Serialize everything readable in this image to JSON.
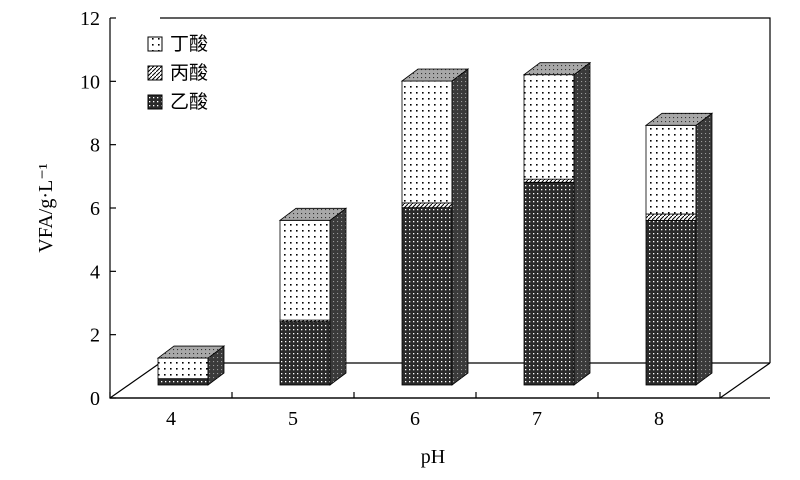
{
  "chart_data": {
    "type": "bar",
    "stacked": true,
    "style": "3d-stacked-bar",
    "categories": [
      "4",
      "5",
      "6",
      "7",
      "8"
    ],
    "series": [
      {
        "name": "乙酸",
        "pattern": "dense-crosshatch",
        "values": [
          0.2,
          2.0,
          5.6,
          6.4,
          5.2
        ]
      },
      {
        "name": "丙酸",
        "pattern": "diagonal-hatch",
        "values": [
          0.0,
          0.05,
          0.15,
          0.1,
          0.2
        ]
      },
      {
        "name": "丁酸",
        "pattern": "sparse-dots",
        "values": [
          0.65,
          3.15,
          3.85,
          3.3,
          2.8
        ]
      }
    ],
    "xlabel": "pH",
    "ylabel": "VFA/g·L⁻¹",
    "ylim": [
      0,
      12
    ],
    "yticks": [
      "0",
      "2",
      "4",
      "6",
      "8",
      "10",
      "12"
    ],
    "grid": false,
    "legend": {
      "placement": "top-left",
      "order": [
        "丁酸",
        "丙酸",
        "乙酸"
      ]
    }
  }
}
